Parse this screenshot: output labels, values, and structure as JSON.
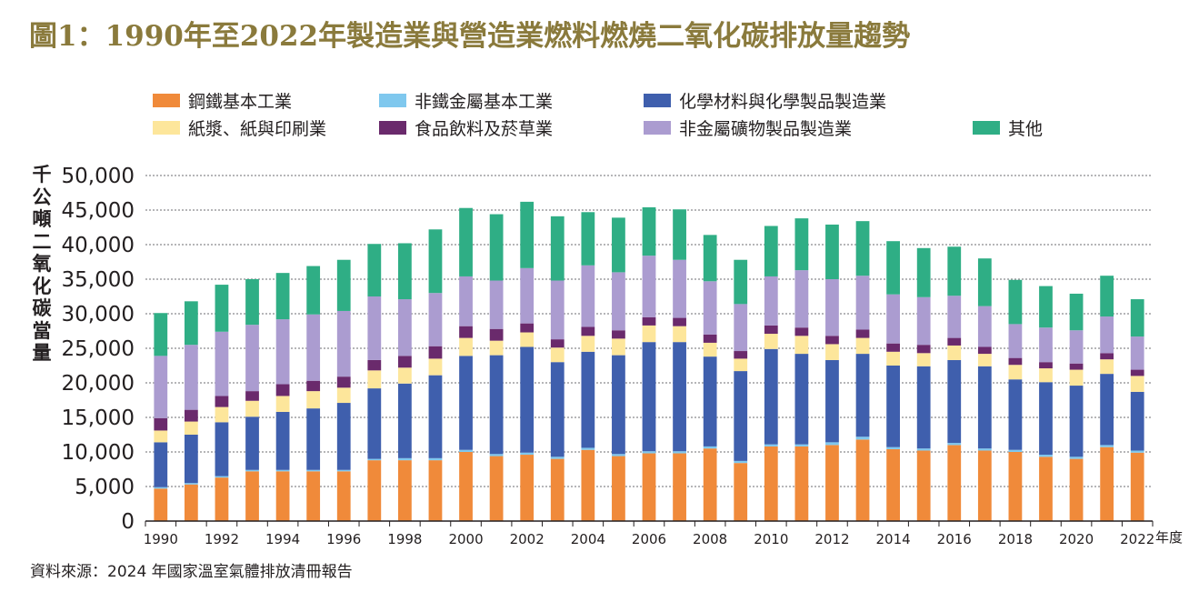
{
  "title": "圖1：1990年至2022年製造業與營造業燃料燃燒二氧化碳排放量趨勢",
  "legend": [
    {
      "label": "鋼鐵基本工業",
      "color": "#f08a3a"
    },
    {
      "label": "非鐵金屬基本工業",
      "color": "#7fc8ee"
    },
    {
      "label": "化學材料與化學製品製造業",
      "color": "#3f5fad"
    },
    {
      "label": "紙漿、紙與印刷業",
      "color": "#fde69b"
    },
    {
      "label": "食品飲料及菸草業",
      "color": "#6a2a6c"
    },
    {
      "label": "非金屬礦物製品製造業",
      "color": "#ab9cd0"
    },
    {
      "label": "其他",
      "color": "#2fae85"
    }
  ],
  "ylabel": "千公噸二氧化碳當量",
  "xunit": "年度",
  "source": "資料來源：2024 年國家溫室氣體排放清冊報告",
  "chart_data": {
    "type": "bar",
    "stacked": true,
    "title": "圖1：1990年至2022年製造業與營造業燃料燃燒二氧化碳排放量趨勢",
    "xlabel": "年度",
    "ylabel": "千公噸二氧化碳當量",
    "ylim": [
      0,
      50000
    ],
    "yticks": [
      0,
      5000,
      10000,
      15000,
      20000,
      25000,
      30000,
      35000,
      40000,
      45000,
      50000
    ],
    "ytick_labels": [
      "0",
      "5,000",
      "10,000",
      "15,000",
      "20,000",
      "25,000",
      "30,000",
      "35,000",
      "40,000",
      "45,000",
      "50,000"
    ],
    "grid": true,
    "categories": [
      "1990",
      "1991",
      "1992",
      "1993",
      "1994",
      "1995",
      "1996",
      "1997",
      "1998",
      "1999",
      "2000",
      "2001",
      "2002",
      "2003",
      "2004",
      "2005",
      "2006",
      "2007",
      "2008",
      "2009",
      "2010",
      "2011",
      "2012",
      "2013",
      "2014",
      "2015",
      "2016",
      "2017",
      "2018",
      "2019",
      "2020",
      "2021",
      "2022"
    ],
    "xtick_labels": [
      "1990",
      "",
      "1992",
      "",
      "1994",
      "",
      "1996",
      "",
      "1998",
      "",
      "2000",
      "",
      "2002",
      "",
      "2004",
      "",
      "2006",
      "",
      "2008",
      "",
      "2010",
      "",
      "2012",
      "",
      "2014",
      "",
      "2016",
      "",
      "2018",
      "",
      "2020",
      "",
      "2022"
    ],
    "series": [
      {
        "name": "鋼鐵基本工業",
        "color": "#f08a3a",
        "values": [
          4700,
          5300,
          6300,
          7200,
          7200,
          7200,
          7200,
          8800,
          8800,
          8800,
          10000,
          9400,
          9600,
          9000,
          10300,
          9400,
          9800,
          9800,
          10500,
          8400,
          10800,
          10800,
          11000,
          11800,
          10400,
          10200,
          11000,
          10200,
          10000,
          9300,
          9000,
          10700,
          9900
        ]
      },
      {
        "name": "非鐵金屬基本工業",
        "color": "#7fc8ee",
        "values": [
          200,
          200,
          200,
          200,
          200,
          200,
          200,
          200,
          300,
          300,
          300,
          300,
          300,
          300,
          300,
          300,
          300,
          300,
          300,
          300,
          300,
          300,
          400,
          400,
          300,
          300,
          300,
          300,
          300,
          300,
          300,
          300,
          300
        ]
      },
      {
        "name": "化學材料與化學製品製造業",
        "color": "#3f5fad",
        "values": [
          6500,
          7000,
          7800,
          7700,
          8400,
          8900,
          9700,
          10200,
          10800,
          12000,
          13600,
          14300,
          15300,
          13700,
          13900,
          14300,
          15800,
          15800,
          13000,
          13000,
          13800,
          13100,
          11900,
          12000,
          11800,
          11900,
          12000,
          11900,
          10200,
          10500,
          10300,
          10300,
          8500
        ]
      },
      {
        "name": "紙漿、紙與印刷業",
        "color": "#fde69b",
        "values": [
          1700,
          1900,
          2200,
          2300,
          2300,
          2500,
          2200,
          2600,
          2300,
          2400,
          2600,
          2100,
          2100,
          2100,
          2300,
          2400,
          2400,
          2300,
          2000,
          1800,
          2200,
          2600,
          2300,
          2300,
          2000,
          1900,
          2100,
          1800,
          2100,
          2000,
          2300,
          2100,
          2300
        ]
      },
      {
        "name": "食品飲料及菸草業",
        "color": "#6a2a6c",
        "values": [
          1800,
          1700,
          1600,
          1400,
          1700,
          1500,
          1600,
          1500,
          1700,
          1800,
          1700,
          1700,
          1300,
          1200,
          1300,
          1200,
          1200,
          1200,
          1200,
          1100,
          1200,
          1200,
          1200,
          1200,
          1200,
          1200,
          1100,
          1000,
          1000,
          900,
          900,
          900,
          900
        ]
      },
      {
        "name": "非金屬礦物製品製造業",
        "color": "#ab9cd0",
        "values": [
          9000,
          9400,
          9300,
          9600,
          9400,
          9600,
          9500,
          9200,
          8200,
          7700,
          7200,
          7000,
          8000,
          8500,
          8900,
          8400,
          8900,
          8400,
          7700,
          6800,
          7100,
          8300,
          8200,
          7800,
          7100,
          6900,
          6100,
          5900,
          4900,
          5000,
          4800,
          5300,
          4800
        ]
      },
      {
        "name": "其他",
        "color": "#2fae85",
        "values": [
          6200,
          6300,
          6800,
          6600,
          6700,
          7000,
          7400,
          7600,
          8100,
          9200,
          9900,
          9600,
          9600,
          9300,
          7700,
          7900,
          7000,
          7300,
          6700,
          6400,
          7300,
          7500,
          7900,
          7900,
          7700,
          7100,
          7100,
          6900,
          6400,
          6000,
          5300,
          5900,
          5400
        ]
      }
    ]
  }
}
